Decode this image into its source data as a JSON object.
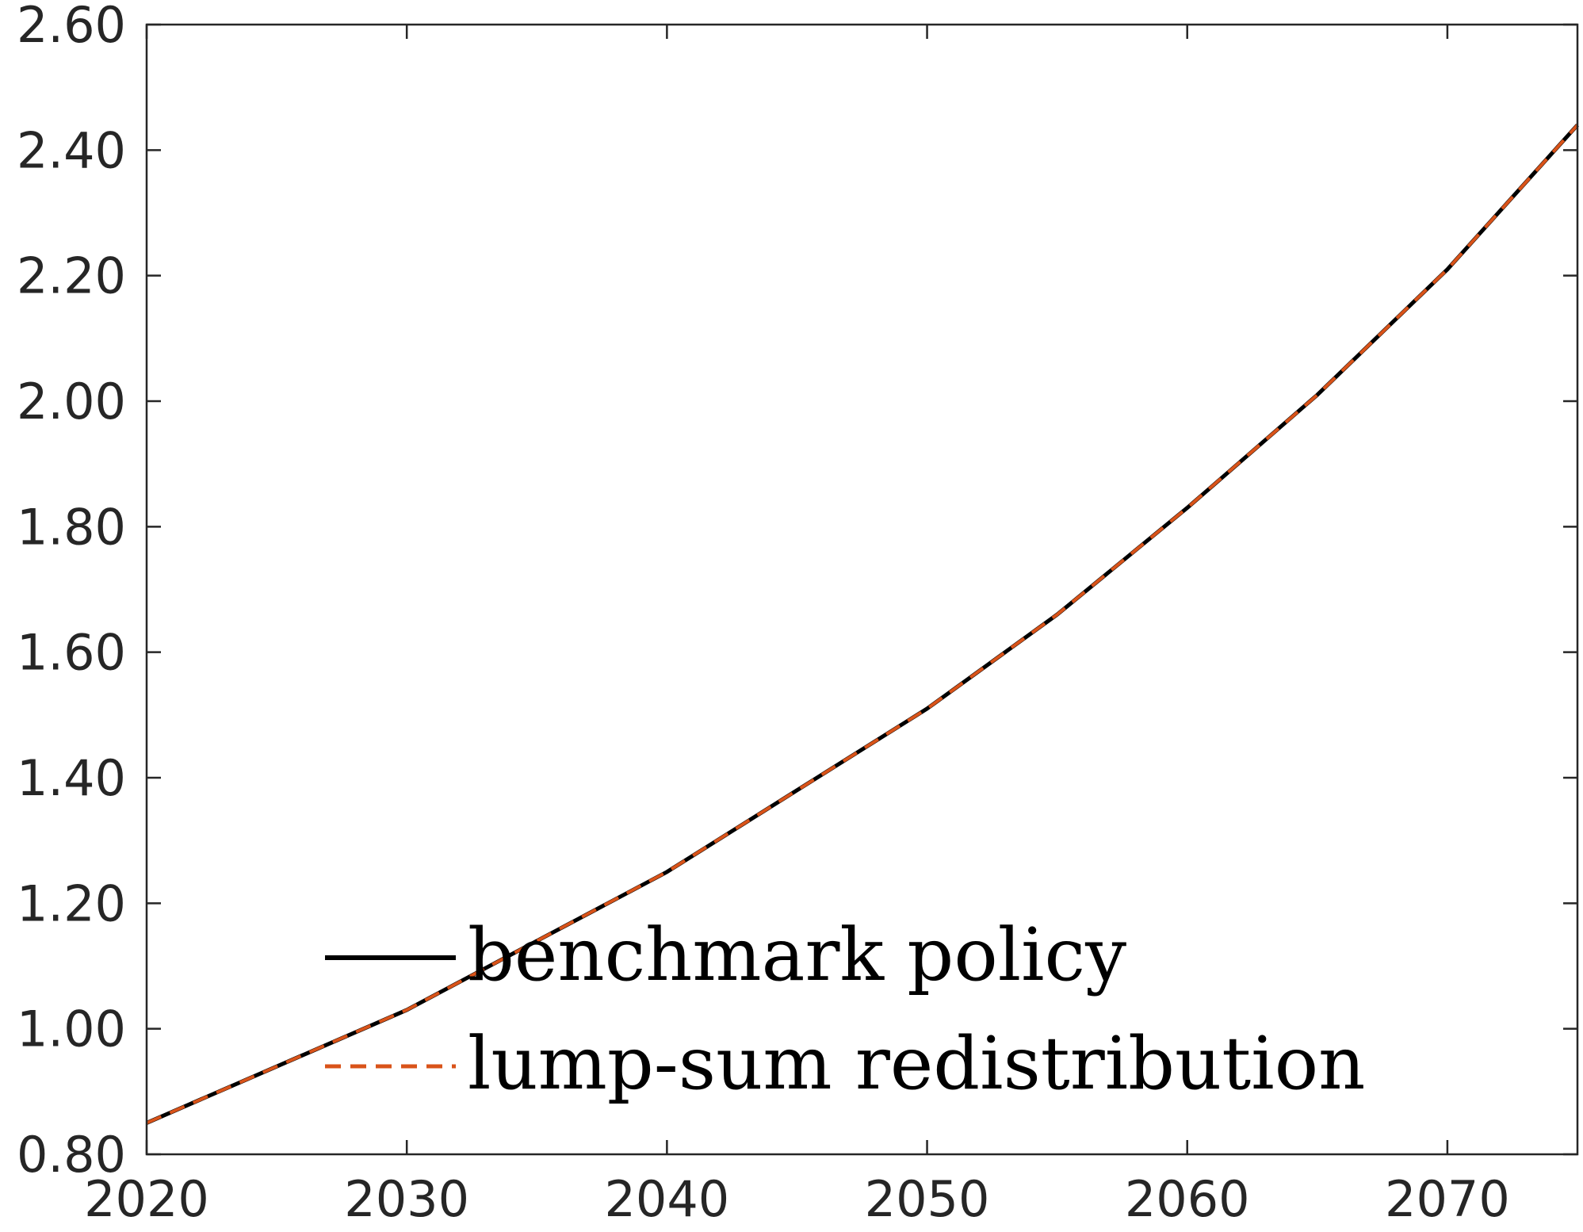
{
  "chart_data": {
    "type": "line",
    "title": "",
    "xlabel": "",
    "ylabel": "",
    "xlim": [
      2020,
      2075
    ],
    "ylim": [
      0.8,
      2.6
    ],
    "x_ticks": [
      "2020",
      "2030",
      "2040",
      "2050",
      "2060",
      "2070"
    ],
    "y_ticks": [
      "0.80",
      "1.00",
      "1.20",
      "1.40",
      "1.60",
      "1.80",
      "2.00",
      "2.20",
      "2.40",
      "2.60"
    ],
    "grid": false,
    "legend_position": "bottom-left",
    "x": [
      2020,
      2025,
      2030,
      2035,
      2040,
      2045,
      2050,
      2055,
      2060,
      2065,
      2070,
      2075
    ],
    "series": [
      {
        "name": "benchmark policy",
        "color": "#000000",
        "style": "solid",
        "values": [
          0.85,
          0.94,
          1.03,
          1.14,
          1.25,
          1.38,
          1.51,
          1.66,
          1.83,
          2.01,
          2.21,
          2.44
        ]
      },
      {
        "name": "lump-sum redistribution",
        "color": "#D95319",
        "style": "dashed",
        "values": [
          0.85,
          0.94,
          1.03,
          1.14,
          1.25,
          1.38,
          1.51,
          1.66,
          1.83,
          2.01,
          2.21,
          2.44
        ]
      }
    ]
  }
}
